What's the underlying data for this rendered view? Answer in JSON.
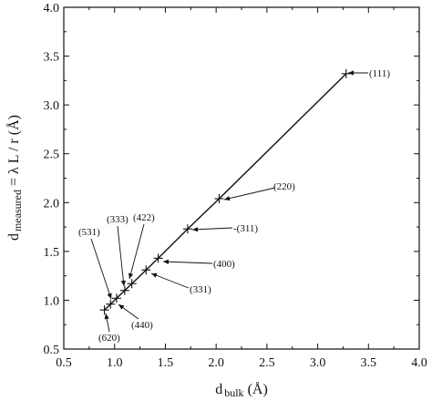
{
  "chart_data": {
    "type": "line",
    "title": "",
    "xlabel": {
      "main": "d",
      "subscript": "bulk",
      "suffix": " (Å)"
    },
    "ylabel": {
      "main": "d",
      "subscript": "measured",
      "suffix": " = λ L / r (Å)"
    },
    "xlim": [
      0.5,
      4.0
    ],
    "ylim": [
      0.5,
      4.0
    ],
    "x_ticks": [
      "0.5",
      "1.0",
      "1.5",
      "2.0",
      "2.5",
      "3.0",
      "3.5",
      "4.0"
    ],
    "y_ticks": [
      "0.5",
      "1.0",
      "1.5",
      "2.0",
      "2.5",
      "3.0",
      "3.5",
      "4.0"
    ],
    "grid": false,
    "series": [
      {
        "points": [
          {
            "x": 0.9,
            "y": 0.9
          },
          {
            "x": 0.96,
            "y": 0.96
          },
          {
            "x": 1.02,
            "y": 1.02
          },
          {
            "x": 1.1,
            "y": 1.1
          },
          {
            "x": 1.17,
            "y": 1.17
          },
          {
            "x": 1.31,
            "y": 1.31
          },
          {
            "x": 1.43,
            "y": 1.43
          },
          {
            "x": 1.72,
            "y": 1.73
          },
          {
            "x": 2.03,
            "y": 2.04
          },
          {
            "x": 3.28,
            "y": 3.32
          }
        ]
      }
    ],
    "annotations": [
      {
        "text": "(111)",
        "x": 3.28,
        "y": 3.32
      },
      {
        "text": "(220)",
        "x": 2.03,
        "y": 2.04
      },
      {
        "text": "-(311)",
        "x": 1.72,
        "y": 1.73
      },
      {
        "text": "(400)",
        "x": 1.43,
        "y": 1.43
      },
      {
        "text": "(331)",
        "x": 1.31,
        "y": 1.31
      },
      {
        "text": "(422)",
        "x": 1.17,
        "y": 1.17
      },
      {
        "text": "(333)",
        "x": 1.1,
        "y": 1.1
      },
      {
        "text": "(531)",
        "x": 0.96,
        "y": 0.96
      },
      {
        "text": "(440)",
        "x": 1.02,
        "y": 1.02
      },
      {
        "text": "(620)",
        "x": 0.9,
        "y": 0.9
      }
    ]
  }
}
